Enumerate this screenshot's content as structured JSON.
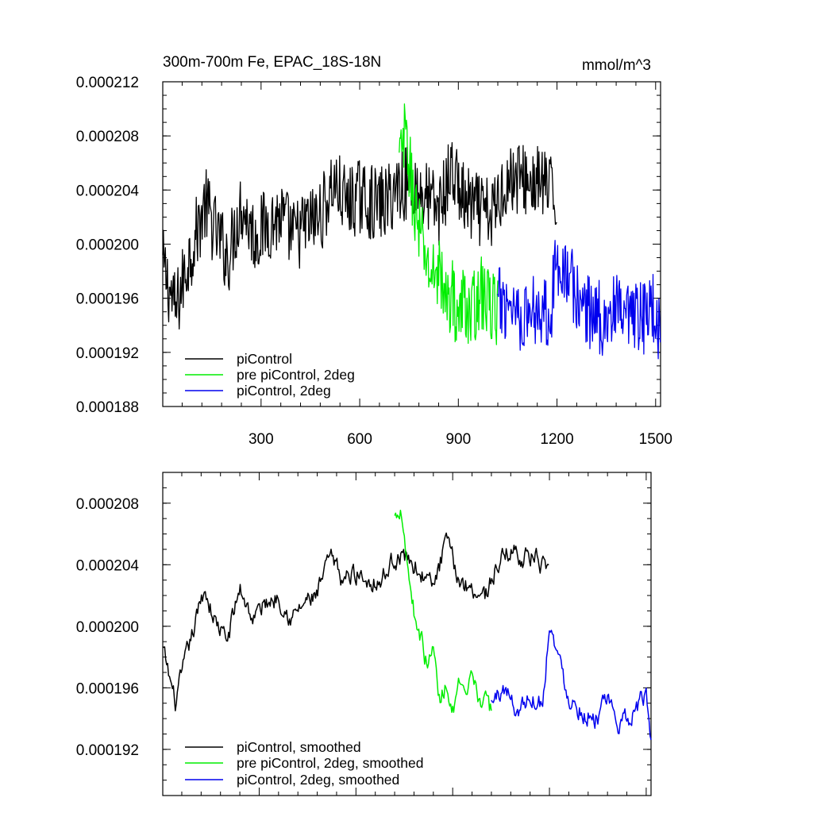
{
  "colors": {
    "piControl": "#000000",
    "pre": "#00ee00",
    "pi2deg": "#0000ee"
  },
  "chart_data": [
    {
      "type": "line",
      "title": "300m-700m Fe, EPAC_18S-18N",
      "units": "mmol/m^3",
      "xlim": [
        1,
        1515
      ],
      "ylim": [
        0.000188,
        0.000212
      ],
      "xticks": [
        300,
        600,
        900,
        1200,
        1500
      ],
      "xtick_labels": [
        "300",
        "600",
        "900",
        "1200",
        "1500"
      ],
      "yticks": [
        0.000188,
        0.000192,
        0.000196,
        0.0002,
        0.000204,
        0.000208,
        0.000212
      ],
      "ytick_labels": [
        "0.000188",
        "0.000192",
        "0.000196",
        "0.000200",
        "0.000204",
        "0.000208",
        "0.000212"
      ],
      "legend_position": "bottom-left",
      "series": [
        {
          "name": "piControl",
          "color": "#000000",
          "x": [
            1,
            40,
            80,
            100,
            130,
            160,
            200,
            240,
            280,
            320,
            360,
            400,
            440,
            480,
            520,
            560,
            600,
            640,
            680,
            720,
            760,
            800,
            840,
            880,
            920,
            960,
            1000,
            1040,
            1080,
            1120,
            1160,
            1200
          ],
          "y": [
            0.0001985,
            0.000195,
            0.000199,
            0.0002005,
            0.000203,
            0.000201,
            0.000199,
            0.000203,
            0.0002005,
            0.0002015,
            0.000202,
            0.0002005,
            0.0002015,
            0.000202,
            0.0002045,
            0.000203,
            0.0002035,
            0.000203,
            0.000203,
            0.0002045,
            0.0002045,
            0.0002035,
            0.0002025,
            0.0002055,
            0.000203,
            0.0002025,
            0.000202,
            0.0002045,
            0.000205,
            0.0002045,
            0.0002045,
            0.000203
          ]
        },
        {
          "name": "pre piControl, 2deg",
          "color": "#00ee00",
          "x": [
            720,
            740,
            760,
            780,
            800,
            820,
            840,
            860,
            880,
            900,
            920,
            940,
            960,
            980,
            1000,
            1020
          ],
          "y": [
            0.000206,
            0.000208,
            0.000204,
            0.000201,
            0.000199,
            0.0001975,
            0.0001985,
            0.0001955,
            0.0001965,
            0.0001945,
            0.000196,
            0.0001945,
            0.0001965,
            0.000196,
            0.0001955,
            0.000195
          ]
        },
        {
          "name": "piControl, 2deg",
          "color": "#0000ee",
          "x": [
            1020,
            1060,
            1100,
            1140,
            1180,
            1200,
            1220,
            1260,
            1300,
            1340,
            1380,
            1420,
            1460,
            1500,
            1515
          ],
          "y": [
            0.0001955,
            0.000196,
            0.0001945,
            0.0001955,
            0.000195,
            0.000199,
            0.0001985,
            0.000196,
            0.000195,
            0.0001945,
            0.000195,
            0.000194,
            0.0001945,
            0.0001955,
            0.000193
          ]
        }
      ]
    },
    {
      "type": "line",
      "xlim": [
        1,
        1515
      ],
      "ylim": [
        0.000189,
        0.00021
      ],
      "xticks": [
        300,
        600,
        900,
        1200,
        1500
      ],
      "yticks": [
        0.000192,
        0.000196,
        0.0002,
        0.000204,
        0.000208
      ],
      "ytick_labels": [
        "0.000192",
        "0.000196",
        "0.000200",
        "0.000204",
        "0.000208"
      ],
      "legend_position": "bottom-left",
      "series": [
        {
          "name": "piControl, smoothed",
          "color": "#000000",
          "x": [
            1,
            40,
            80,
            100,
            130,
            160,
            200,
            240,
            280,
            320,
            360,
            400,
            440,
            480,
            520,
            560,
            600,
            640,
            680,
            720,
            760,
            800,
            840,
            880,
            920,
            960,
            1000,
            1040,
            1080,
            1120,
            1160,
            1200
          ],
          "y": [
            0.0001985,
            0.000195,
            0.0001985,
            0.0002,
            0.0002025,
            0.0002005,
            0.000199,
            0.0002025,
            0.0002005,
            0.0002015,
            0.000202,
            0.0002005,
            0.0002015,
            0.000202,
            0.0002045,
            0.000203,
            0.0002035,
            0.000203,
            0.000203,
            0.0002045,
            0.0002045,
            0.0002035,
            0.0002025,
            0.0002055,
            0.000203,
            0.0002025,
            0.000202,
            0.000204,
            0.000205,
            0.0002045,
            0.0002045,
            0.000203
          ]
        },
        {
          "name": "pre piControl, 2deg, smoothed",
          "color": "#00ee00",
          "x": [
            720,
            740,
            760,
            780,
            800,
            820,
            840,
            860,
            880,
            900,
            920,
            940,
            960,
            980,
            1000,
            1020
          ],
          "y": [
            0.000207,
            0.000208,
            0.000204,
            0.000201,
            0.0001995,
            0.0001975,
            0.0001985,
            0.000195,
            0.0001965,
            0.0001945,
            0.000196,
            0.000195,
            0.0001965,
            0.0001955,
            0.000195,
            0.0001945
          ]
        },
        {
          "name": "piControl, 2deg, smoothed",
          "color": "#0000ee",
          "x": [
            1020,
            1060,
            1100,
            1140,
            1180,
            1200,
            1220,
            1260,
            1300,
            1340,
            1380,
            1420,
            1460,
            1500,
            1515
          ],
          "y": [
            0.000195,
            0.000196,
            0.0001945,
            0.0001955,
            0.000195,
            0.0002005,
            0.0001985,
            0.0001955,
            0.0001945,
            0.000194,
            0.000195,
            0.0001935,
            0.0001945,
            0.0001955,
            0.0001925
          ]
        }
      ]
    }
  ]
}
